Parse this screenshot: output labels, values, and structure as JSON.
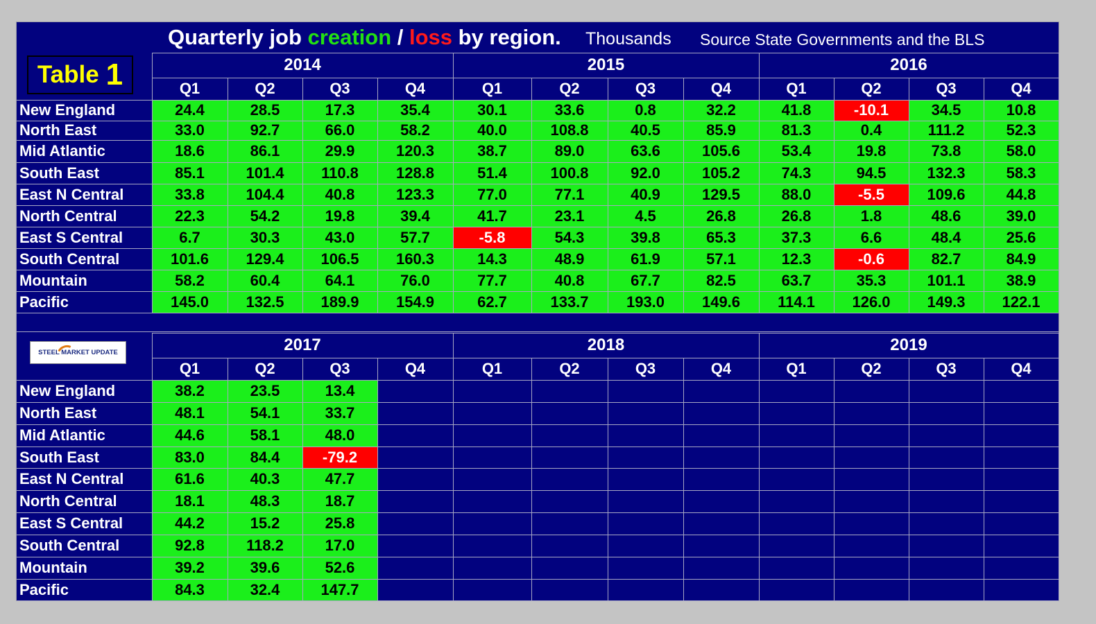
{
  "title": {
    "part1": "Quarterly job ",
    "creation": "creation",
    "slash": " / ",
    "loss": "loss",
    "part2": " by region.",
    "units": "Thousands",
    "source": "Source State Governments and the BLS"
  },
  "table_label": {
    "word": "Table",
    "number": "1"
  },
  "logo": {
    "text": "STEEL MARKET UPDATE",
    "icon": "swoosh-logo-icon"
  },
  "colors": {
    "background": "#02027f",
    "positive": "#1bef1b",
    "negative": "#ff0000",
    "creation_text": "#23e012",
    "loss_text": "#ff1a1a",
    "table_label_text": "#ffff00"
  },
  "chart_data": {
    "type": "table",
    "quarters": [
      "Q1",
      "Q2",
      "Q3",
      "Q4"
    ],
    "regions": [
      "New England",
      "North East",
      "Mid Atlantic",
      "South East",
      "East N Central",
      "North Central",
      "East S Central",
      "South Central",
      "Mountain",
      "Pacific"
    ],
    "blocks": [
      {
        "years": [
          "2014",
          "2015",
          "2016"
        ],
        "values": [
          [
            24.4,
            28.5,
            17.3,
            35.4,
            30.1,
            33.6,
            0.8,
            32.2,
            41.8,
            -10.1,
            34.5,
            10.8
          ],
          [
            33.0,
            92.7,
            66.0,
            58.2,
            40.0,
            108.8,
            40.5,
            85.9,
            81.3,
            0.4,
            111.2,
            52.3
          ],
          [
            18.6,
            86.1,
            29.9,
            120.3,
            38.7,
            89.0,
            63.6,
            105.6,
            53.4,
            19.8,
            73.8,
            58.0
          ],
          [
            85.1,
            101.4,
            110.8,
            128.8,
            51.4,
            100.8,
            92.0,
            105.2,
            74.3,
            94.5,
            132.3,
            58.3
          ],
          [
            33.8,
            104.4,
            40.8,
            123.3,
            77.0,
            77.1,
            40.9,
            129.5,
            88.0,
            -5.5,
            109.6,
            44.8
          ],
          [
            22.3,
            54.2,
            19.8,
            39.4,
            41.7,
            23.1,
            4.5,
            26.8,
            26.8,
            1.8,
            48.6,
            39.0
          ],
          [
            6.7,
            30.3,
            43.0,
            57.7,
            -5.8,
            54.3,
            39.8,
            65.3,
            37.3,
            6.6,
            48.4,
            25.6
          ],
          [
            101.6,
            129.4,
            106.5,
            160.3,
            14.3,
            48.9,
            61.9,
            57.1,
            12.3,
            -0.6,
            82.7,
            84.9
          ],
          [
            58.2,
            60.4,
            64.1,
            76.0,
            77.7,
            40.8,
            67.7,
            82.5,
            63.7,
            35.3,
            101.1,
            38.9
          ],
          [
            145.0,
            132.5,
            189.9,
            154.9,
            62.7,
            133.7,
            193.0,
            149.6,
            114.1,
            126.0,
            149.3,
            122.1
          ]
        ]
      },
      {
        "years": [
          "2017",
          "2018",
          "2019"
        ],
        "values": [
          [
            38.2,
            23.5,
            13.4,
            null,
            null,
            null,
            null,
            null,
            null,
            null,
            null,
            null
          ],
          [
            48.1,
            54.1,
            33.7,
            null,
            null,
            null,
            null,
            null,
            null,
            null,
            null,
            null
          ],
          [
            44.6,
            58.1,
            48.0,
            null,
            null,
            null,
            null,
            null,
            null,
            null,
            null,
            null
          ],
          [
            83.0,
            84.4,
            -79.2,
            null,
            null,
            null,
            null,
            null,
            null,
            null,
            null,
            null
          ],
          [
            61.6,
            40.3,
            47.7,
            null,
            null,
            null,
            null,
            null,
            null,
            null,
            null,
            null
          ],
          [
            18.1,
            48.3,
            18.7,
            null,
            null,
            null,
            null,
            null,
            null,
            null,
            null,
            null
          ],
          [
            44.2,
            15.2,
            25.8,
            null,
            null,
            null,
            null,
            null,
            null,
            null,
            null,
            null
          ],
          [
            92.8,
            118.2,
            17.0,
            null,
            null,
            null,
            null,
            null,
            null,
            null,
            null,
            null
          ],
          [
            39.2,
            39.6,
            52.6,
            null,
            null,
            null,
            null,
            null,
            null,
            null,
            null,
            null
          ],
          [
            84.3,
            32.4,
            147.7,
            null,
            null,
            null,
            null,
            null,
            null,
            null,
            null,
            null
          ]
        ]
      }
    ]
  }
}
